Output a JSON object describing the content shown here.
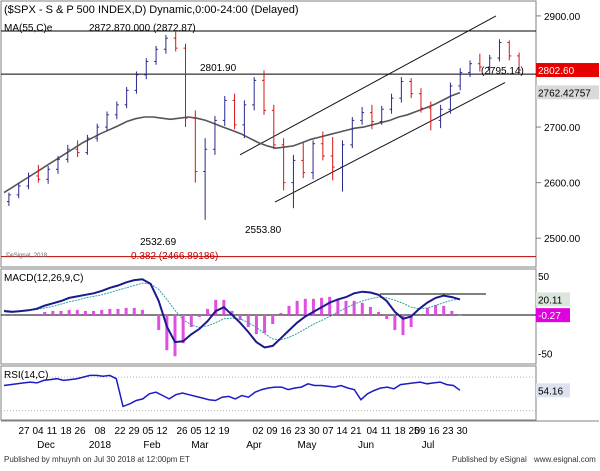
{
  "chart_data": [
    {
      "panel": "price",
      "type": "candlestick",
      "title": "($SPX - S & P 500 INDEX,D) Dynamic,0:00-24:00 (Delayed)",
      "indicator_label": "MA(55,C)e",
      "ylim": [
        2450,
        2925
      ],
      "y_ticks": [
        {
          "label": "2900.00",
          "value": 2900
        },
        {
          "label": "2800.00",
          "value": 2800
        },
        {
          "label": "2700.00",
          "value": 2700
        },
        {
          "label": "2600.00",
          "value": 2600
        },
        {
          "label": "2500.00",
          "value": 2500
        }
      ],
      "price_badges": [
        {
          "label": "2802.60",
          "value": 2802.6,
          "color": "#e60000"
        },
        {
          "label": "2762.42757",
          "value": 2762.43,
          "color": "#d9d9d9"
        }
      ],
      "horizontal_lines": [
        {
          "value": 2872.87
        },
        {
          "value": 2795.14
        },
        {
          "value": 2466.89
        }
      ],
      "annotations": [
        {
          "text": "2872.870.000 (2872.87)",
          "value": 2872.87
        },
        {
          "text": "2801.90",
          "value": 2801.9
        },
        {
          "text": "(2795.14)",
          "value": 2795.14
        },
        {
          "text": "2532.69",
          "value": 2532.69
        },
        {
          "text": "2553.80",
          "value": 2553.8
        },
        {
          "text": "0.382 (2466.89186)",
          "value": 2466.89,
          "color": "#c00000"
        }
      ],
      "watermark": "©eSignal, 2018",
      "colors": {
        "up": "#2a2a8c",
        "down": "#d81414",
        "ma": "#555555",
        "channel": "#111111"
      },
      "series": [
        {
          "name": "MA(55,C)e",
          "values": [
            2582,
            2592,
            2602,
            2612,
            2622,
            2632,
            2642,
            2652,
            2662,
            2672,
            2680,
            2688,
            2695,
            2702,
            2710,
            2715,
            2718,
            2718,
            2716,
            2714,
            2716,
            2718,
            2716,
            2712,
            2706,
            2700,
            2694,
            2688,
            2680,
            2672,
            2666,
            2662,
            2664,
            2666,
            2672,
            2678,
            2682,
            2686,
            2690,
            2694,
            2698,
            2700,
            2704,
            2708,
            2712,
            2718,
            2722,
            2728,
            2734,
            2740,
            2748,
            2756,
            2762
          ]
        }
      ],
      "candles": [
        {
          "o": 2566,
          "h": 2582,
          "l": 2558,
          "c": 2578
        },
        {
          "o": 2578,
          "h": 2600,
          "l": 2572,
          "c": 2594
        },
        {
          "o": 2594,
          "h": 2618,
          "l": 2588,
          "c": 2612
        },
        {
          "o": 2612,
          "h": 2632,
          "l": 2600,
          "c": 2606
        },
        {
          "o": 2606,
          "h": 2630,
          "l": 2598,
          "c": 2624
        },
        {
          "o": 2624,
          "h": 2648,
          "l": 2616,
          "c": 2642
        },
        {
          "o": 2642,
          "h": 2668,
          "l": 2636,
          "c": 2660
        },
        {
          "o": 2660,
          "h": 2676,
          "l": 2646,
          "c": 2654
        },
        {
          "o": 2654,
          "h": 2686,
          "l": 2650,
          "c": 2680
        },
        {
          "o": 2680,
          "h": 2706,
          "l": 2674,
          "c": 2700
        },
        {
          "o": 2700,
          "h": 2728,
          "l": 2694,
          "c": 2722
        },
        {
          "o": 2722,
          "h": 2746,
          "l": 2714,
          "c": 2740
        },
        {
          "o": 2740,
          "h": 2772,
          "l": 2734,
          "c": 2766
        },
        {
          "o": 2766,
          "h": 2800,
          "l": 2760,
          "c": 2794
        },
        {
          "o": 2794,
          "h": 2824,
          "l": 2786,
          "c": 2818
        },
        {
          "o": 2818,
          "h": 2846,
          "l": 2812,
          "c": 2840
        },
        {
          "o": 2840,
          "h": 2866,
          "l": 2832,
          "c": 2860
        },
        {
          "o": 2860,
          "h": 2873,
          "l": 2836,
          "c": 2842
        },
        {
          "o": 2842,
          "h": 2850,
          "l": 2700,
          "c": 2716
        },
        {
          "o": 2716,
          "h": 2730,
          "l": 2600,
          "c": 2620
        },
        {
          "o": 2620,
          "h": 2680,
          "l": 2533,
          "c": 2660
        },
        {
          "o": 2660,
          "h": 2720,
          "l": 2650,
          "c": 2712
        },
        {
          "o": 2712,
          "h": 2756,
          "l": 2702,
          "c": 2748
        },
        {
          "o": 2748,
          "h": 2760,
          "l": 2696,
          "c": 2704
        },
        {
          "o": 2704,
          "h": 2748,
          "l": 2680,
          "c": 2740
        },
        {
          "o": 2740,
          "h": 2790,
          "l": 2730,
          "c": 2784
        },
        {
          "o": 2784,
          "h": 2802,
          "l": 2722,
          "c": 2730
        },
        {
          "o": 2730,
          "h": 2740,
          "l": 2660,
          "c": 2668
        },
        {
          "o": 2668,
          "h": 2680,
          "l": 2586,
          "c": 2600
        },
        {
          "o": 2600,
          "h": 2650,
          "l": 2554,
          "c": 2640
        },
        {
          "o": 2640,
          "h": 2672,
          "l": 2608,
          "c": 2618
        },
        {
          "o": 2618,
          "h": 2676,
          "l": 2606,
          "c": 2670
        },
        {
          "o": 2670,
          "h": 2692,
          "l": 2640,
          "c": 2648
        },
        {
          "o": 2648,
          "h": 2682,
          "l": 2604,
          "c": 2628
        },
        {
          "o": 2628,
          "h": 2676,
          "l": 2584,
          "c": 2668
        },
        {
          "o": 2668,
          "h": 2718,
          "l": 2662,
          "c": 2712
        },
        {
          "o": 2712,
          "h": 2736,
          "l": 2704,
          "c": 2726
        },
        {
          "o": 2726,
          "h": 2740,
          "l": 2696,
          "c": 2710
        },
        {
          "o": 2710,
          "h": 2738,
          "l": 2704,
          "c": 2732
        },
        {
          "o": 2732,
          "h": 2760,
          "l": 2724,
          "c": 2752
        },
        {
          "o": 2752,
          "h": 2790,
          "l": 2744,
          "c": 2782
        },
        {
          "o": 2782,
          "h": 2788,
          "l": 2752,
          "c": 2760
        },
        {
          "o": 2760,
          "h": 2770,
          "l": 2726,
          "c": 2734
        },
        {
          "o": 2734,
          "h": 2746,
          "l": 2694,
          "c": 2712
        },
        {
          "o": 2712,
          "h": 2740,
          "l": 2698,
          "c": 2732
        },
        {
          "o": 2732,
          "h": 2780,
          "l": 2724,
          "c": 2774
        },
        {
          "o": 2774,
          "h": 2806,
          "l": 2766,
          "c": 2798
        },
        {
          "o": 2798,
          "h": 2820,
          "l": 2790,
          "c": 2814
        },
        {
          "o": 2814,
          "h": 2832,
          "l": 2800,
          "c": 2808
        },
        {
          "o": 2808,
          "h": 2830,
          "l": 2796,
          "c": 2824
        },
        {
          "o": 2824,
          "h": 2858,
          "l": 2818,
          "c": 2852
        },
        {
          "o": 2852,
          "h": 2856,
          "l": 2820,
          "c": 2828
        },
        {
          "o": 2828,
          "h": 2834,
          "l": 2798,
          "c": 2802.6
        }
      ]
    },
    {
      "panel": "macd",
      "type": "line",
      "title": "MACD(12,26,9,C)",
      "ylim": [
        -62,
        58
      ],
      "y_ticks": [
        {
          "label": "50",
          "value": 50
        },
        {
          "label": "-50",
          "value": -50
        }
      ],
      "badges": [
        {
          "label": "20.11",
          "value": 20.11,
          "color": "#dce6dc"
        },
        {
          "label": "-0.27",
          "value": -0.27,
          "color": "#e000e0"
        }
      ],
      "reference_lines": [
        {
          "value": 0
        },
        {
          "value": 27
        }
      ],
      "colors": {
        "macd": "#1a1a8c",
        "signal": "#30a0a0",
        "hist": "#e050e0"
      },
      "series": [
        {
          "name": "MACD",
          "values": [
            5,
            4,
            5,
            6,
            8,
            12,
            15,
            18,
            22,
            24,
            26,
            28,
            31,
            35,
            38,
            42,
            45,
            46,
            40,
            18,
            -15,
            -35,
            -34,
            -25,
            -18,
            -8,
            5,
            10,
            0,
            -10,
            -22,
            -35,
            -42,
            -40,
            -30,
            -20,
            -10,
            -2,
            4,
            10,
            16,
            20,
            23,
            28,
            30,
            29,
            26,
            18,
            4,
            -5,
            -2,
            8,
            16,
            22,
            25,
            23,
            20.11
          ]
        },
        {
          "name": "Signal",
          "values": [
            6,
            5,
            5,
            6,
            7,
            9,
            11,
            14,
            17,
            19,
            22,
            24,
            26,
            29,
            32,
            35,
            38,
            41,
            40,
            33,
            20,
            6,
            -6,
            -13,
            -16,
            -14,
            -10,
            -5,
            -4,
            -5,
            -10,
            -16,
            -24,
            -31,
            -32,
            -29,
            -24,
            -18,
            -12,
            -7,
            -2,
            4,
            9,
            14,
            18,
            21,
            23,
            22,
            19,
            15,
            10,
            8,
            9,
            12,
            16,
            19,
            20.4
          ]
        }
      ]
    },
    {
      "panel": "rsi",
      "type": "line",
      "title": "RSI(14,C)",
      "ylim": [
        20,
        82
      ],
      "badges": [
        {
          "label": "54.16",
          "value": 54.16,
          "color": "#dde2ee"
        }
      ],
      "reference_lines": [
        {
          "value": 70
        },
        {
          "value": 30
        }
      ],
      "colors": {
        "rsi": "#1c1cc4"
      },
      "series": [
        {
          "name": "RSI",
          "values": [
            60,
            61,
            62,
            63,
            64,
            63,
            66,
            67,
            68,
            66,
            67,
            68,
            70,
            72,
            72,
            71,
            72,
            68,
            35,
            38,
            42,
            44,
            50,
            52,
            48,
            44,
            49,
            51,
            49,
            47,
            45,
            43,
            42,
            46,
            47,
            44,
            48,
            46,
            52,
            55,
            57,
            58,
            58,
            55,
            57,
            58,
            62,
            60,
            60,
            59,
            58,
            60,
            57,
            55,
            43,
            50,
            54,
            57,
            58,
            56,
            61,
            62,
            63,
            64,
            62,
            63,
            64,
            61,
            60,
            54.16
          ]
        }
      ]
    },
    {
      "panel": "axis",
      "type": "date-axis",
      "day_ticks": [
        "27",
        "04",
        "11",
        "18",
        "26",
        "08",
        "22",
        "29",
        "05",
        "12",
        "26",
        "05",
        "12",
        "19",
        "02",
        "09",
        "16",
        "23",
        "30",
        "07",
        "14",
        "21",
        "04",
        "11",
        "18",
        "25",
        "09",
        "16",
        "23",
        "30"
      ],
      "month_labels": [
        "Dec",
        "2018",
        "Feb",
        "Mar",
        "Apr",
        "May",
        "Jun",
        "Jul"
      ]
    }
  ],
  "footer": "Published by mhuynh on Jul 30 2018 at 12:00pm ET",
  "published_by": "Published by eSignal",
  "logo_text": "www.esignal.com"
}
